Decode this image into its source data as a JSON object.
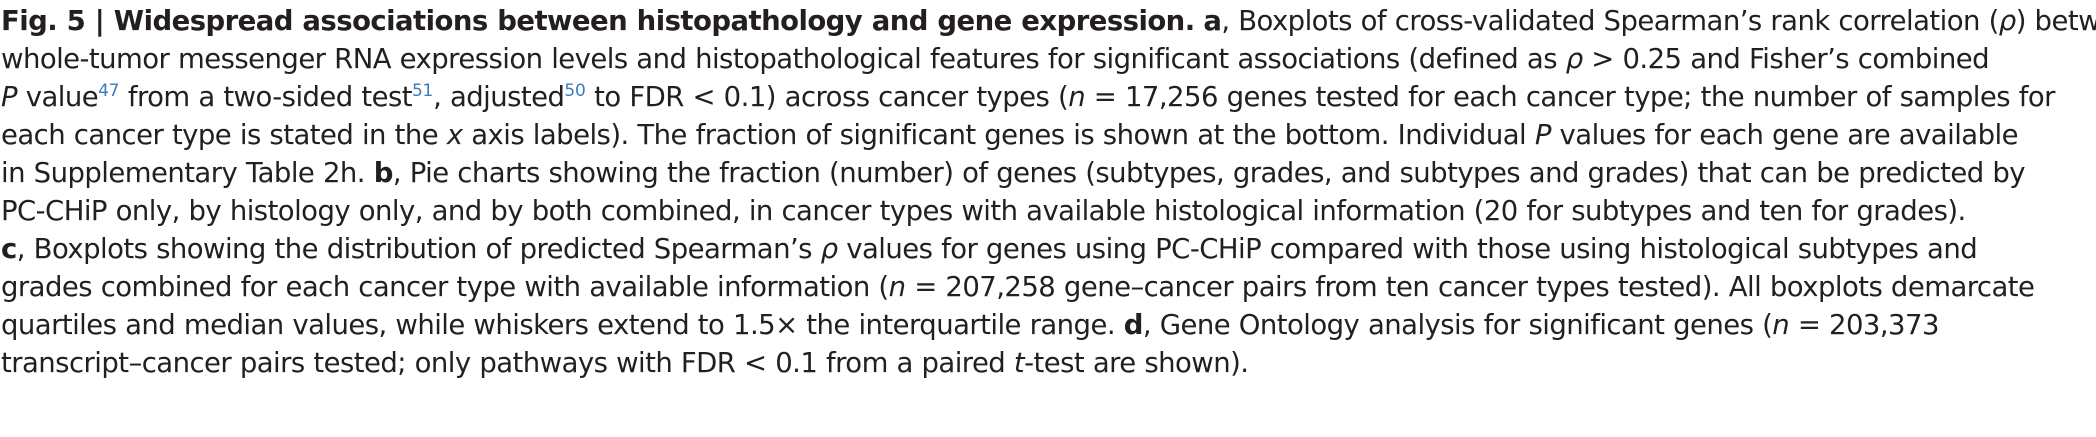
{
  "caption": {
    "fig_label": "Fig. 5 | Widespread associations between histopathology and gene expression.",
    "lines": [
      [
        {
          "t": "Fig. 5 | Widespread associations between histopathology and gene expression.",
          "s": "b"
        },
        {
          "t": " "
        },
        {
          "t": "a",
          "s": "b"
        },
        {
          "t": ", Boxplots of cross-validated Spearman’s rank correlation ("
        },
        {
          "t": "ρ",
          "s": "i"
        },
        {
          "t": ") between"
        }
      ],
      [
        {
          "t": "whole-tumor messenger RNA expression levels and histopathological features for significant associations (defined as "
        },
        {
          "t": "ρ",
          "s": "i"
        },
        {
          "t": " > 0.25 and Fisher’s combined"
        }
      ],
      [
        {
          "t": "P",
          "s": "i"
        },
        {
          "t": " value"
        },
        {
          "t": "47",
          "s": "ref"
        },
        {
          "t": " from a two-sided test"
        },
        {
          "t": "51",
          "s": "ref"
        },
        {
          "t": ", adjusted"
        },
        {
          "t": "50",
          "s": "ref"
        },
        {
          "t": " to FDR < 0.1) across cancer types ("
        },
        {
          "t": "n",
          "s": "i"
        },
        {
          "t": " = 17,256 genes tested for each cancer type; the number of samples for"
        }
      ],
      [
        {
          "t": "each cancer type is stated in the "
        },
        {
          "t": "x",
          "s": "i"
        },
        {
          "t": " axis labels). The fraction of significant genes is shown at the bottom. Individual "
        },
        {
          "t": "P",
          "s": "i"
        },
        {
          "t": " values for each gene are available"
        }
      ],
      [
        {
          "t": "in Supplementary Table 2h. "
        },
        {
          "t": "b",
          "s": "b"
        },
        {
          "t": ", Pie charts showing the fraction (number) of genes (subtypes, grades, and subtypes and grades) that can be predicted by"
        }
      ],
      [
        {
          "t": "PC-CHiP only, by histology only, and by both combined, in cancer types with available histological information (20 for subtypes and ten for grades)."
        }
      ],
      [
        {
          "t": "c",
          "s": "b"
        },
        {
          "t": ", Boxplots showing the distribution of predicted Spearman’s "
        },
        {
          "t": "ρ",
          "s": "i"
        },
        {
          "t": " values for genes using PC-CHiP compared with those using histological subtypes and"
        }
      ],
      [
        {
          "t": "grades combined for each cancer type with available information ("
        },
        {
          "t": "n",
          "s": "i"
        },
        {
          "t": " = 207,258 gene–cancer pairs from ten cancer types tested). All boxplots demarcate"
        }
      ],
      [
        {
          "t": "quartiles and median values, while whiskers extend to 1.5× the interquartile range. "
        },
        {
          "t": "d",
          "s": "b"
        },
        {
          "t": ", Gene Ontology analysis for significant genes ("
        },
        {
          "t": "n",
          "s": "i"
        },
        {
          "t": " = 203,373"
        }
      ],
      [
        {
          "t": "transcript–cancer pairs tested; only pathways with FDR < 0.1 from a paired "
        },
        {
          "t": "t",
          "s": "i"
        },
        {
          "t": "-test are shown)."
        }
      ]
    ]
  }
}
